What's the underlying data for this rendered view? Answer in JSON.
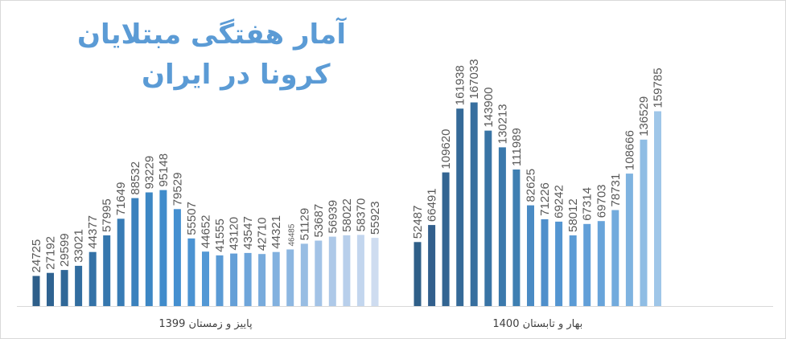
{
  "title_line1": "آمار هفتگی مبتلایان",
  "title_line2": "کرونا در ایران",
  "chart_data": {
    "type": "bar",
    "groups": [
      {
        "label": "پاییز و زمستان 1399",
        "values": [
          24725,
          27192,
          29599,
          33021,
          44377,
          57995,
          71649,
          88532,
          93229,
          95148,
          79529,
          55507,
          44652,
          41555,
          43120,
          43547,
          42710,
          44321,
          46485,
          51129,
          53687,
          56939,
          58022,
          58370,
          55923
        ],
        "colors": [
          "#2e5f8a",
          "#2f6391",
          "#306898",
          "#326d9f",
          "#3472a7",
          "#3677ae",
          "#387cb5",
          "#3a81bd",
          "#3d87c4",
          "#408ccb",
          "#448fd0",
          "#4b93d2",
          "#5398d5",
          "#5b9bd5",
          "#649fd7",
          "#6ea5da",
          "#78abdc",
          "#82b1df",
          "#8db7e1",
          "#98bde3",
          "#a3c3e6",
          "#aec9e8",
          "#b8cfeb",
          "#c3d6ee",
          "#cedcf0"
        ]
      },
      {
        "label": "بهار و تابستان 1400",
        "values": [
          52487,
          66491,
          109620,
          161938,
          167033,
          143900,
          130213,
          111989,
          82625,
          71226,
          69242,
          58012,
          67314,
          69703,
          78731,
          108666,
          136529,
          159785
        ],
        "colors": [
          "#2f5f88",
          "#325f8c",
          "#336592",
          "#356a98",
          "#376f9f",
          "#3974a5",
          "#3b79ac",
          "#3e7fb2",
          "#4a8bc4",
          "#4f8fcb",
          "#5495d1",
          "#5b9bd5",
          "#629fd8",
          "#68a4da",
          "#72abdd",
          "#7fb3e0",
          "#8fbde4",
          "#9fc6e8"
        ]
      }
    ],
    "ylim": [
      0,
      170000
    ],
    "legend": "none",
    "grid": false
  }
}
